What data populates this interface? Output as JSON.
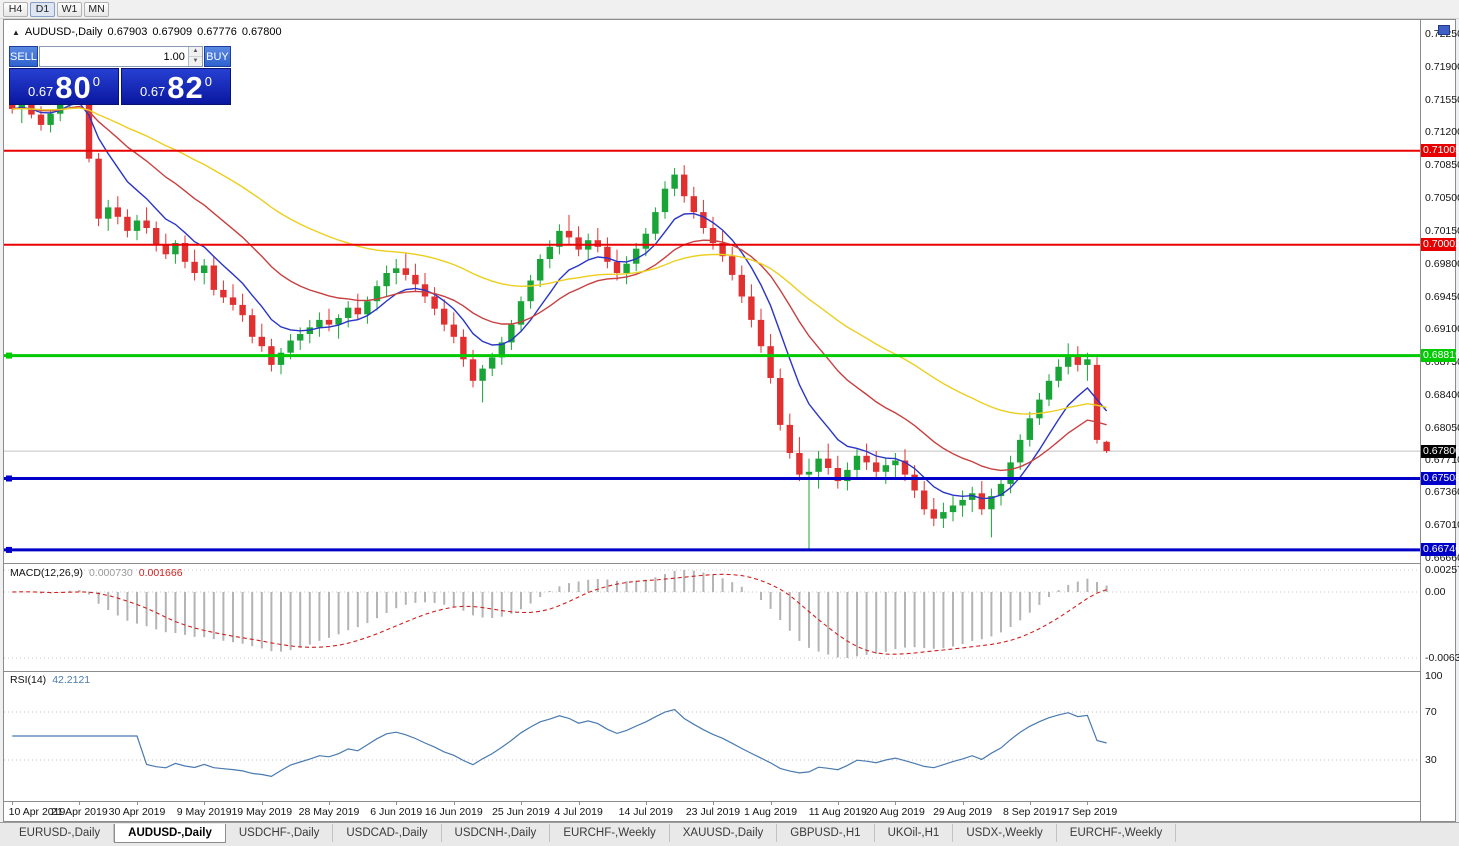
{
  "toolbar": {
    "timeframes": [
      "H4",
      "D1",
      "W1",
      "MN"
    ],
    "active": "D1"
  },
  "window": {
    "title_icon": "▲",
    "symbol_title": "AUDUSD-,Daily",
    "ohlc": {
      "open": "0.67903",
      "high": "0.67909",
      "low": "0.67776",
      "close": "0.67800"
    }
  },
  "chart": {
    "trade_panel": {
      "sell_label": "SELL",
      "buy_label": "BUY",
      "volume": "1.00",
      "sell_price": {
        "small": "0.67",
        "big": "80",
        "sup": "0"
      },
      "buy_price": {
        "small": "0.67",
        "big": "82",
        "sup": "0"
      }
    },
    "price_axis": {
      "min": 0.6666,
      "max": 0.7225,
      "labels": [
        "0.72250",
        "0.71900",
        "0.71550",
        "0.71200",
        "0.70850",
        "0.70500",
        "0.70150",
        "0.69800",
        "0.69450",
        "0.69100",
        "0.68750",
        "0.68400",
        "0.68050",
        "0.67710",
        "0.67360",
        "0.67010",
        "0.66660"
      ]
    },
    "levels": [
      {
        "value": 0.71005,
        "label": "0.71005",
        "color": "#e80000",
        "width": 2,
        "handle": false
      },
      {
        "value": 0.70002,
        "label": "0.70002",
        "color": "#e80000",
        "width": 2,
        "handle": false
      },
      {
        "value": 0.68819,
        "label": "0.68819",
        "color": "#00ca00",
        "width": 3,
        "handle": true
      },
      {
        "value": 0.67508,
        "label": "0.67508",
        "color": "#0000c8",
        "width": 3,
        "handle": true
      },
      {
        "value": 0.66746,
        "label": "0.66746",
        "color": "#0000c8",
        "width": 3,
        "handle": true
      }
    ],
    "current_price": {
      "value": 0.678,
      "label": "0.67800",
      "badge_color": "#000000"
    }
  },
  "macd": {
    "label": "MACD(12,26,9)",
    "main_value": "0.000730",
    "signal_value": "0.001666",
    "params": [
      12,
      26,
      9
    ],
    "axis_labels": [
      "0.002574",
      "0.00",
      "-0.00632"
    ],
    "histogram_color": "#b4b4b4",
    "signal_color": "#d02020"
  },
  "rsi": {
    "label": "RSI(14)",
    "value": "42.2121",
    "period": 14,
    "axis_labels": [
      "100",
      "70",
      "30"
    ],
    "levels": [
      70,
      30
    ],
    "line_color": "#4a7ab0"
  },
  "tabs": {
    "items": [
      "EURUSD-,Daily",
      "AUDUSD-,Daily",
      "USDCHF-,Daily",
      "USDCAD-,Daily",
      "USDCNH-,Daily",
      "EURCHF-,Weekly",
      "XAUUSD-,Daily",
      "GBPUSD-,H1",
      "UKOil-,H1",
      "USDX-,Weekly",
      "EURCHF-,Weekly"
    ],
    "active_index": 1
  },
  "chart_data": {
    "type": "candlestick",
    "symbol": "AUDUSD",
    "timeframe": "Daily",
    "title": "AUDUSD-,Daily",
    "y_range": [
      0.6666,
      0.7225
    ],
    "colors": {
      "bull": "#18a437",
      "bear": "#e03030"
    },
    "moving_averages": [
      {
        "period": 8,
        "color": "#2a35c8"
      },
      {
        "period": 20,
        "color": "#c84040"
      },
      {
        "period": 45,
        "color": "#eccf1e"
      }
    ],
    "x_labels": [
      "10 Apr 2019",
      "21 Apr 2019",
      "30 Apr 2019",
      "9 May 2019",
      "19 May 2019",
      "28 May 2019",
      "6 Jun 2019",
      "16 Jun 2019",
      "25 Jun 2019",
      "4 Jul 2019",
      "14 Jul 2019",
      "23 Jul 2019",
      "1 Aug 2019",
      "11 Aug 2019",
      "20 Aug 2019",
      "29 Aug 2019",
      "8 Sep 2019",
      "17 Sep 2019"
    ],
    "x_label_indices": [
      0,
      7,
      13,
      20,
      26,
      33,
      40,
      46,
      53,
      59,
      66,
      73,
      79,
      86,
      92,
      99,
      106,
      112
    ],
    "candles": [
      [
        0.7152,
        0.7168,
        0.714,
        0.7145
      ],
      [
        0.7145,
        0.7158,
        0.713,
        0.7152
      ],
      [
        0.7152,
        0.716,
        0.7135,
        0.7139
      ],
      [
        0.7139,
        0.7148,
        0.7122,
        0.7128
      ],
      [
        0.7128,
        0.7145,
        0.712,
        0.714
      ],
      [
        0.714,
        0.7158,
        0.7132,
        0.7153
      ],
      [
        0.7153,
        0.7172,
        0.7145,
        0.7168
      ],
      [
        0.7168,
        0.7178,
        0.7155,
        0.716
      ],
      [
        0.716,
        0.7166,
        0.7088,
        0.7092
      ],
      [
        0.7092,
        0.7098,
        0.702,
        0.7028
      ],
      [
        0.7028,
        0.7048,
        0.7015,
        0.704
      ],
      [
        0.704,
        0.7052,
        0.7022,
        0.703
      ],
      [
        0.703,
        0.7038,
        0.7008,
        0.7015
      ],
      [
        0.7015,
        0.7032,
        0.7005,
        0.7026
      ],
      [
        0.7026,
        0.704,
        0.7012,
        0.7018
      ],
      [
        0.7018,
        0.7025,
        0.6993,
        0.7
      ],
      [
        0.7,
        0.7012,
        0.6985,
        0.699
      ],
      [
        0.699,
        0.7005,
        0.698,
        0.7002
      ],
      [
        0.7002,
        0.701,
        0.6975,
        0.6982
      ],
      [
        0.6982,
        0.6995,
        0.6962,
        0.697
      ],
      [
        0.697,
        0.6985,
        0.6958,
        0.6978
      ],
      [
        0.6978,
        0.6988,
        0.6946,
        0.6952
      ],
      [
        0.6952,
        0.6962,
        0.6938,
        0.6944
      ],
      [
        0.6944,
        0.6958,
        0.693,
        0.6936
      ],
      [
        0.6936,
        0.6948,
        0.6918,
        0.6925
      ],
      [
        0.6925,
        0.6932,
        0.6895,
        0.6902
      ],
      [
        0.6902,
        0.6916,
        0.6886,
        0.6892
      ],
      [
        0.6892,
        0.69,
        0.6865,
        0.6872
      ],
      [
        0.6872,
        0.689,
        0.6862,
        0.6885
      ],
      [
        0.6885,
        0.6905,
        0.6878,
        0.6898
      ],
      [
        0.6898,
        0.6912,
        0.6888,
        0.6905
      ],
      [
        0.6905,
        0.692,
        0.6895,
        0.6912
      ],
      [
        0.6912,
        0.6928,
        0.6902,
        0.692
      ],
      [
        0.692,
        0.6932,
        0.6908,
        0.6915
      ],
      [
        0.6915,
        0.6926,
        0.69,
        0.6922
      ],
      [
        0.6922,
        0.694,
        0.6912,
        0.6933
      ],
      [
        0.6933,
        0.6948,
        0.692,
        0.6926
      ],
      [
        0.6926,
        0.6945,
        0.6916,
        0.694
      ],
      [
        0.694,
        0.6962,
        0.693,
        0.6956
      ],
      [
        0.6956,
        0.6978,
        0.6945,
        0.697
      ],
      [
        0.697,
        0.6985,
        0.6958,
        0.6975
      ],
      [
        0.6975,
        0.6992,
        0.6962,
        0.6968
      ],
      [
        0.6968,
        0.698,
        0.695,
        0.6958
      ],
      [
        0.6958,
        0.697,
        0.6938,
        0.6945
      ],
      [
        0.6945,
        0.6955,
        0.6925,
        0.6932
      ],
      [
        0.6932,
        0.6942,
        0.6908,
        0.6915
      ],
      [
        0.6915,
        0.6928,
        0.6895,
        0.6902
      ],
      [
        0.6902,
        0.691,
        0.687,
        0.6878
      ],
      [
        0.6878,
        0.6888,
        0.6848,
        0.6855
      ],
      [
        0.6855,
        0.6872,
        0.6832,
        0.6868
      ],
      [
        0.6868,
        0.6885,
        0.686,
        0.688
      ],
      [
        0.688,
        0.6902,
        0.6872,
        0.6896
      ],
      [
        0.6896,
        0.692,
        0.6888,
        0.6915
      ],
      [
        0.6915,
        0.6945,
        0.6908,
        0.694
      ],
      [
        0.694,
        0.6968,
        0.6932,
        0.6962
      ],
      [
        0.6962,
        0.699,
        0.6955,
        0.6985
      ],
      [
        0.6985,
        0.7005,
        0.6975,
        0.6998
      ],
      [
        0.6998,
        0.7022,
        0.699,
        0.7015
      ],
      [
        0.7015,
        0.7032,
        0.7,
        0.7008
      ],
      [
        0.7008,
        0.702,
        0.6988,
        0.6995
      ],
      [
        0.6995,
        0.7012,
        0.6985,
        0.7005
      ],
      [
        0.7005,
        0.7018,
        0.6992,
        0.6998
      ],
      [
        0.6998,
        0.7008,
        0.6975,
        0.6982
      ],
      [
        0.6982,
        0.6995,
        0.6962,
        0.697
      ],
      [
        0.697,
        0.6988,
        0.6958,
        0.698
      ],
      [
        0.698,
        0.7002,
        0.6972,
        0.6996
      ],
      [
        0.6996,
        0.7018,
        0.6988,
        0.7012
      ],
      [
        0.7012,
        0.704,
        0.7005,
        0.7035
      ],
      [
        0.7035,
        0.7068,
        0.7028,
        0.706
      ],
      [
        0.706,
        0.7082,
        0.7052,
        0.7075
      ],
      [
        0.7075,
        0.7085,
        0.7045,
        0.7052
      ],
      [
        0.7052,
        0.7062,
        0.7028,
        0.7035
      ],
      [
        0.7035,
        0.7048,
        0.7012,
        0.7018
      ],
      [
        0.7018,
        0.703,
        0.6995,
        0.7002
      ],
      [
        0.7002,
        0.7015,
        0.6982,
        0.6988
      ],
      [
        0.6988,
        0.6998,
        0.6962,
        0.6968
      ],
      [
        0.6968,
        0.6978,
        0.6938,
        0.6945
      ],
      [
        0.6945,
        0.6958,
        0.6912,
        0.692
      ],
      [
        0.692,
        0.6932,
        0.6885,
        0.6892
      ],
      [
        0.6892,
        0.6905,
        0.6852,
        0.6858
      ],
      [
        0.6858,
        0.6868,
        0.6802,
        0.6808
      ],
      [
        0.6808,
        0.682,
        0.6772,
        0.6778
      ],
      [
        0.6778,
        0.6795,
        0.6748,
        0.6755
      ],
      [
        0.6755,
        0.6772,
        0.6675,
        0.6758
      ],
      [
        0.6758,
        0.678,
        0.674,
        0.6772
      ],
      [
        0.6772,
        0.6788,
        0.6755,
        0.6762
      ],
      [
        0.6762,
        0.6775,
        0.674,
        0.6748
      ],
      [
        0.6748,
        0.6768,
        0.6738,
        0.676
      ],
      [
        0.676,
        0.6782,
        0.675,
        0.6775
      ],
      [
        0.6775,
        0.6788,
        0.676,
        0.6768
      ],
      [
        0.6768,
        0.678,
        0.6752,
        0.6758
      ],
      [
        0.6758,
        0.6772,
        0.6745,
        0.6765
      ],
      [
        0.6765,
        0.6778,
        0.6752,
        0.677
      ],
      [
        0.677,
        0.6782,
        0.6748,
        0.6755
      ],
      [
        0.6755,
        0.6765,
        0.673,
        0.6738
      ],
      [
        0.6738,
        0.6748,
        0.6712,
        0.6718
      ],
      [
        0.6718,
        0.673,
        0.67,
        0.6708
      ],
      [
        0.6708,
        0.6725,
        0.6698,
        0.6715
      ],
      [
        0.6715,
        0.6732,
        0.6705,
        0.6722
      ],
      [
        0.6722,
        0.6738,
        0.671,
        0.6728
      ],
      [
        0.6728,
        0.6742,
        0.6715,
        0.6735
      ],
      [
        0.6735,
        0.6748,
        0.6712,
        0.6718
      ],
      [
        0.6718,
        0.674,
        0.6688,
        0.6732
      ],
      [
        0.6732,
        0.6752,
        0.6722,
        0.6745
      ],
      [
        0.6745,
        0.6775,
        0.6735,
        0.6768
      ],
      [
        0.6768,
        0.6798,
        0.676,
        0.6792
      ],
      [
        0.6792,
        0.6822,
        0.6785,
        0.6815
      ],
      [
        0.6815,
        0.6842,
        0.6808,
        0.6835
      ],
      [
        0.6835,
        0.6862,
        0.6828,
        0.6855
      ],
      [
        0.6855,
        0.6878,
        0.6848,
        0.687
      ],
      [
        0.687,
        0.6895,
        0.6862,
        0.6882
      ],
      [
        0.6882,
        0.6892,
        0.6865,
        0.6872
      ],
      [
        0.6872,
        0.6885,
        0.6855,
        0.6878
      ],
      [
        0.6872,
        0.688,
        0.6788,
        0.6792
      ],
      [
        0.679,
        0.6791,
        0.6778,
        0.678
      ]
    ]
  }
}
